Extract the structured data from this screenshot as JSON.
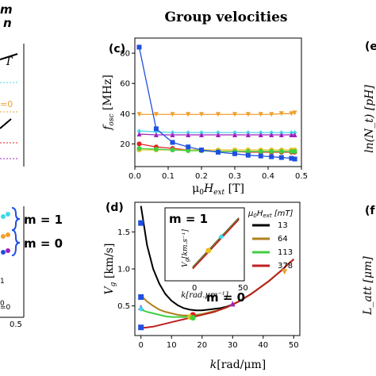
{
  "figure_title": "Group velocities",
  "left_panel": {
    "top_fragment": "m\nn",
    "annotations": [
      "m = 1",
      "m = 0"
    ],
    "labels_right": [
      "=0",
      "=0"
    ],
    "bottom_tick": "0.5",
    "small_labels": [
      "0",
      "1"
    ]
  },
  "right_panel": {
    "labels": [
      "(e",
      "(f"
    ],
    "ylabel_top": "ln(N_t) [pH]",
    "ylabel_bottom": "L_att [μm]"
  },
  "chart_data": [
    {
      "panel": "(c)",
      "type": "line",
      "xlabel": "μ0Hext [T]",
      "ylabel": "fosc [MHz]",
      "xlim": [
        0,
        0.5
      ],
      "ylim": [
        5,
        90
      ],
      "xticks": [
        "0.0",
        "0.1",
        "0.2",
        "0.3",
        "0.4",
        "0.5"
      ],
      "yticks": [
        "20",
        "40",
        "60",
        "80"
      ],
      "series": [
        {
          "color": "#f0a030",
          "marker": "triangle-down",
          "x": [
            0.013,
            0.064,
            0.113,
            0.16,
            0.2,
            0.25,
            0.3,
            0.34,
            0.378,
            0.41,
            0.44,
            0.47,
            0.48
          ],
          "values": [
            39.5,
            39.5,
            39.5,
            39.5,
            39.5,
            39.5,
            39.5,
            39.5,
            39.5,
            39.5,
            40,
            40,
            40.5
          ]
        },
        {
          "color": "#50d8e8",
          "marker": "diamond",
          "x": [
            0.013,
            0.064,
            0.113,
            0.16,
            0.2,
            0.25,
            0.3,
            0.34,
            0.378,
            0.41,
            0.44,
            0.47,
            0.48
          ],
          "values": [
            28.5,
            28,
            27.5,
            27.5,
            27.5,
            27.5,
            27.5,
            27.5,
            27.5,
            27.5,
            27.5,
            27.5,
            27.5
          ]
        },
        {
          "color": "#a020c0",
          "marker": "triangle-up",
          "x": [
            0.013,
            0.064,
            0.113,
            0.16,
            0.2,
            0.25,
            0.3,
            0.34,
            0.378,
            0.41,
            0.44,
            0.47,
            0.48
          ],
          "values": [
            26.5,
            26,
            26,
            26,
            26,
            26,
            26,
            26,
            26,
            26,
            26,
            26,
            26
          ]
        },
        {
          "color": "#e02020",
          "marker": "circle",
          "x": [
            0.013,
            0.064,
            0.113,
            0.16,
            0.2,
            0.25,
            0.3,
            0.34,
            0.378,
            0.41,
            0.44,
            0.47,
            0.48
          ],
          "values": [
            20,
            18,
            17,
            16,
            15.5,
            15,
            15,
            14.5,
            14.5,
            14.5,
            14.5,
            14.5,
            14.5
          ]
        },
        {
          "color": "#e8c020",
          "marker": "circle",
          "x": [
            0.013,
            0.064,
            0.113,
            0.16,
            0.2,
            0.25,
            0.3,
            0.34,
            0.378,
            0.41,
            0.44,
            0.47,
            0.48
          ],
          "values": [
            16,
            16,
            16,
            16,
            16,
            16,
            16,
            16,
            16,
            16,
            16,
            16,
            16
          ]
        },
        {
          "color": "#40d040",
          "marker": "circle",
          "x": [
            0.013,
            0.064,
            0.113,
            0.16,
            0.2,
            0.25,
            0.3,
            0.34,
            0.378,
            0.41,
            0.44,
            0.47,
            0.48
          ],
          "values": [
            17,
            16.5,
            16,
            15.5,
            15.5,
            15,
            15,
            15,
            15,
            15,
            15,
            15,
            15
          ]
        },
        {
          "color": "#2050e0",
          "marker": "square",
          "x": [
            0.013,
            0.064,
            0.113,
            0.16,
            0.2,
            0.25,
            0.3,
            0.34,
            0.378,
            0.41,
            0.44,
            0.47,
            0.48
          ],
          "values": [
            84,
            30,
            21,
            18,
            16,
            14.5,
            13.5,
            12.5,
            12,
            11.5,
            11,
            10.5,
            10
          ]
        }
      ]
    },
    {
      "panel": "(d)",
      "type": "line",
      "xlabel": "k[rad/μm]",
      "ylabel": "Vg [km/s]",
      "xlim": [
        -2,
        52
      ],
      "ylim": [
        0.1,
        1.9
      ],
      "xticks": [
        "0",
        "10",
        "20",
        "30",
        "40",
        "50"
      ],
      "yticks": [
        "0.5",
        "1.0",
        "1.5"
      ],
      "annotations": [
        "m = 1",
        "m = 0"
      ],
      "series": [
        {
          "color": "#000000",
          "x": [
            0,
            2,
            4,
            6,
            8,
            10,
            12,
            14,
            16,
            18,
            20,
            22,
            24,
            26,
            28,
            30,
            32,
            34,
            36,
            38,
            40,
            42,
            44,
            46,
            48,
            50
          ],
          "values": [
            1.85,
            1.32,
            1.0,
            0.8,
            0.66,
            0.57,
            0.51,
            0.47,
            0.45,
            0.44,
            0.44,
            0.45,
            0.46,
            0.47,
            0.49,
            0.52,
            0.56,
            0.61,
            0.66,
            0.72,
            0.78,
            0.84,
            0.91,
            0.98,
            1.06,
            1.13
          ]
        },
        {
          "color": "#b08020",
          "x": [
            0,
            2,
            4,
            6,
            8,
            10,
            12,
            14,
            16,
            18,
            20,
            22,
            24,
            26,
            28,
            30,
            32,
            34,
            36,
            38,
            40,
            42,
            44,
            46,
            48,
            50
          ],
          "values": [
            0.64,
            0.56,
            0.5,
            0.45,
            0.42,
            0.4,
            0.38,
            0.37,
            0.37,
            0.38,
            0.39,
            0.41,
            0.43,
            0.45,
            0.48,
            0.52,
            0.56,
            0.61,
            0.66,
            0.72,
            0.78,
            0.84,
            0.91,
            0.98,
            1.06,
            1.13
          ]
        },
        {
          "color": "#40d040",
          "x": [
            0,
            2,
            4,
            6,
            8,
            10,
            12,
            14,
            16,
            18,
            20,
            22,
            24,
            26,
            28,
            30,
            32,
            34,
            36,
            38,
            40,
            42,
            44,
            46,
            48,
            50
          ],
          "values": [
            0.45,
            0.42,
            0.4,
            0.38,
            0.36,
            0.35,
            0.35,
            0.35,
            0.36,
            0.37,
            0.38,
            0.4,
            0.42,
            0.45,
            0.48,
            0.52,
            0.56,
            0.61,
            0.66,
            0.72,
            0.78,
            0.84,
            0.91,
            0.98,
            1.06,
            1.13
          ]
        },
        {
          "color": "#c02020",
          "x": [
            0,
            2,
            4,
            6,
            8,
            10,
            12,
            14,
            16,
            18,
            20,
            22,
            24,
            26,
            28,
            30,
            32,
            34,
            36,
            38,
            40,
            42,
            44,
            46,
            48,
            50
          ],
          "values": [
            0.2,
            0.21,
            0.22,
            0.24,
            0.26,
            0.28,
            0.3,
            0.32,
            0.34,
            0.36,
            0.38,
            0.4,
            0.42,
            0.45,
            0.48,
            0.52,
            0.56,
            0.61,
            0.66,
            0.72,
            0.78,
            0.84,
            0.91,
            0.98,
            1.06,
            1.13
          ]
        }
      ],
      "markers": [
        {
          "color": "#2050e0",
          "shape": "square",
          "x": 0,
          "y": 1.62
        },
        {
          "color": "#2050e0",
          "shape": "square",
          "x": 0,
          "y": 0.62
        },
        {
          "color": "#a020c0",
          "shape": "triangle-up",
          "x": 0,
          "y": 0.48
        },
        {
          "color": "#40d8e8",
          "shape": "diamond",
          "x": 0,
          "y": 0.46
        },
        {
          "color": "#2050e0",
          "shape": "square",
          "x": 0,
          "y": 0.21
        },
        {
          "color": "#e02020",
          "shape": "circle",
          "x": 17,
          "y": 0.38
        },
        {
          "color": "#e8c020",
          "shape": "circle",
          "x": 16,
          "y": 0.35
        },
        {
          "color": "#40d040",
          "shape": "circle",
          "x": 17,
          "y": 0.34
        },
        {
          "color": "#a020c0",
          "shape": "triangle-up",
          "x": 30,
          "y": 0.53
        },
        {
          "color": "#f0a030",
          "shape": "triangle-down",
          "x": 47,
          "y": 0.96
        }
      ],
      "inset": {
        "xlabel": "k[rad.μm⁻¹]",
        "ylabel": "Vg[km.s⁻¹]",
        "xticks": [
          "0",
          "50"
        ],
        "annotation": "m = 1",
        "x": [
          0,
          50
        ],
        "lines": [
          {
            "color": "#000000",
            "values": [
              0.0,
              1.0
            ]
          },
          {
            "color": "#b08020",
            "values": [
              0.0,
              1.0
            ]
          },
          {
            "color": "#40d040",
            "values": [
              0.0,
              1.0
            ]
          },
          {
            "color": "#c02020",
            "values": [
              0.0,
              1.0
            ]
          }
        ],
        "markers": [
          {
            "color": "#e8c020",
            "shape": "circle",
            "x": 17,
            "y": 0.34
          },
          {
            "color": "#40d8e8",
            "shape": "diamond",
            "x": 31,
            "y": 0.62
          }
        ]
      },
      "legend": {
        "title": "μ0Hext [mT]",
        "entries": [
          {
            "label": "13",
            "color": "#000000"
          },
          {
            "label": "64",
            "color": "#b08020"
          },
          {
            "label": "113",
            "color": "#40d040"
          },
          {
            "label": "378",
            "color": "#c02020"
          }
        ]
      }
    }
  ]
}
